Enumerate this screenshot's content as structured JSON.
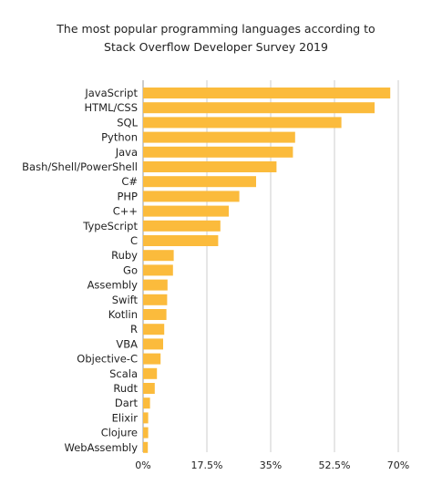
{
  "title": {
    "line1": "The most popular programming languages according to",
    "line2": "Stack Overflow Developer Survey 2019"
  },
  "colors": {
    "bar": "#FBBB3C",
    "grid": "#cccccc",
    "text": "#222222"
  },
  "chart_data": {
    "type": "bar",
    "orientation": "horizontal",
    "title": "The most popular programming languages according to Stack Overflow Developer Survey 2019",
    "categories": [
      "JavaScript",
      "HTML/CSS",
      "SQL",
      "Python",
      "Java",
      "Bash/Shell/PowerShell",
      "C#",
      "PHP",
      "C++",
      "TypeScript",
      "C",
      "Ruby",
      "Go",
      "Assembly",
      "Swift",
      "Kotlin",
      "R",
      "VBA",
      "Objective-C",
      "Scala",
      "Rudt",
      "Dart",
      "Elixir",
      "Clojure",
      "WebAssembly"
    ],
    "values": [
      67.8,
      63.5,
      54.4,
      41.7,
      41.1,
      36.6,
      31.0,
      26.4,
      23.5,
      21.2,
      20.6,
      8.4,
      8.2,
      6.7,
      6.6,
      6.4,
      5.8,
      5.5,
      4.8,
      3.8,
      3.2,
      1.9,
      1.4,
      1.4,
      1.3
    ],
    "xlim": [
      0,
      70
    ],
    "xticks": [
      0,
      17.5,
      35,
      52.5,
      70
    ],
    "xtick_labels": [
      "0%",
      "17.5%",
      "35%",
      "52.5%",
      "70%"
    ],
    "grid": true,
    "legend": "none"
  }
}
